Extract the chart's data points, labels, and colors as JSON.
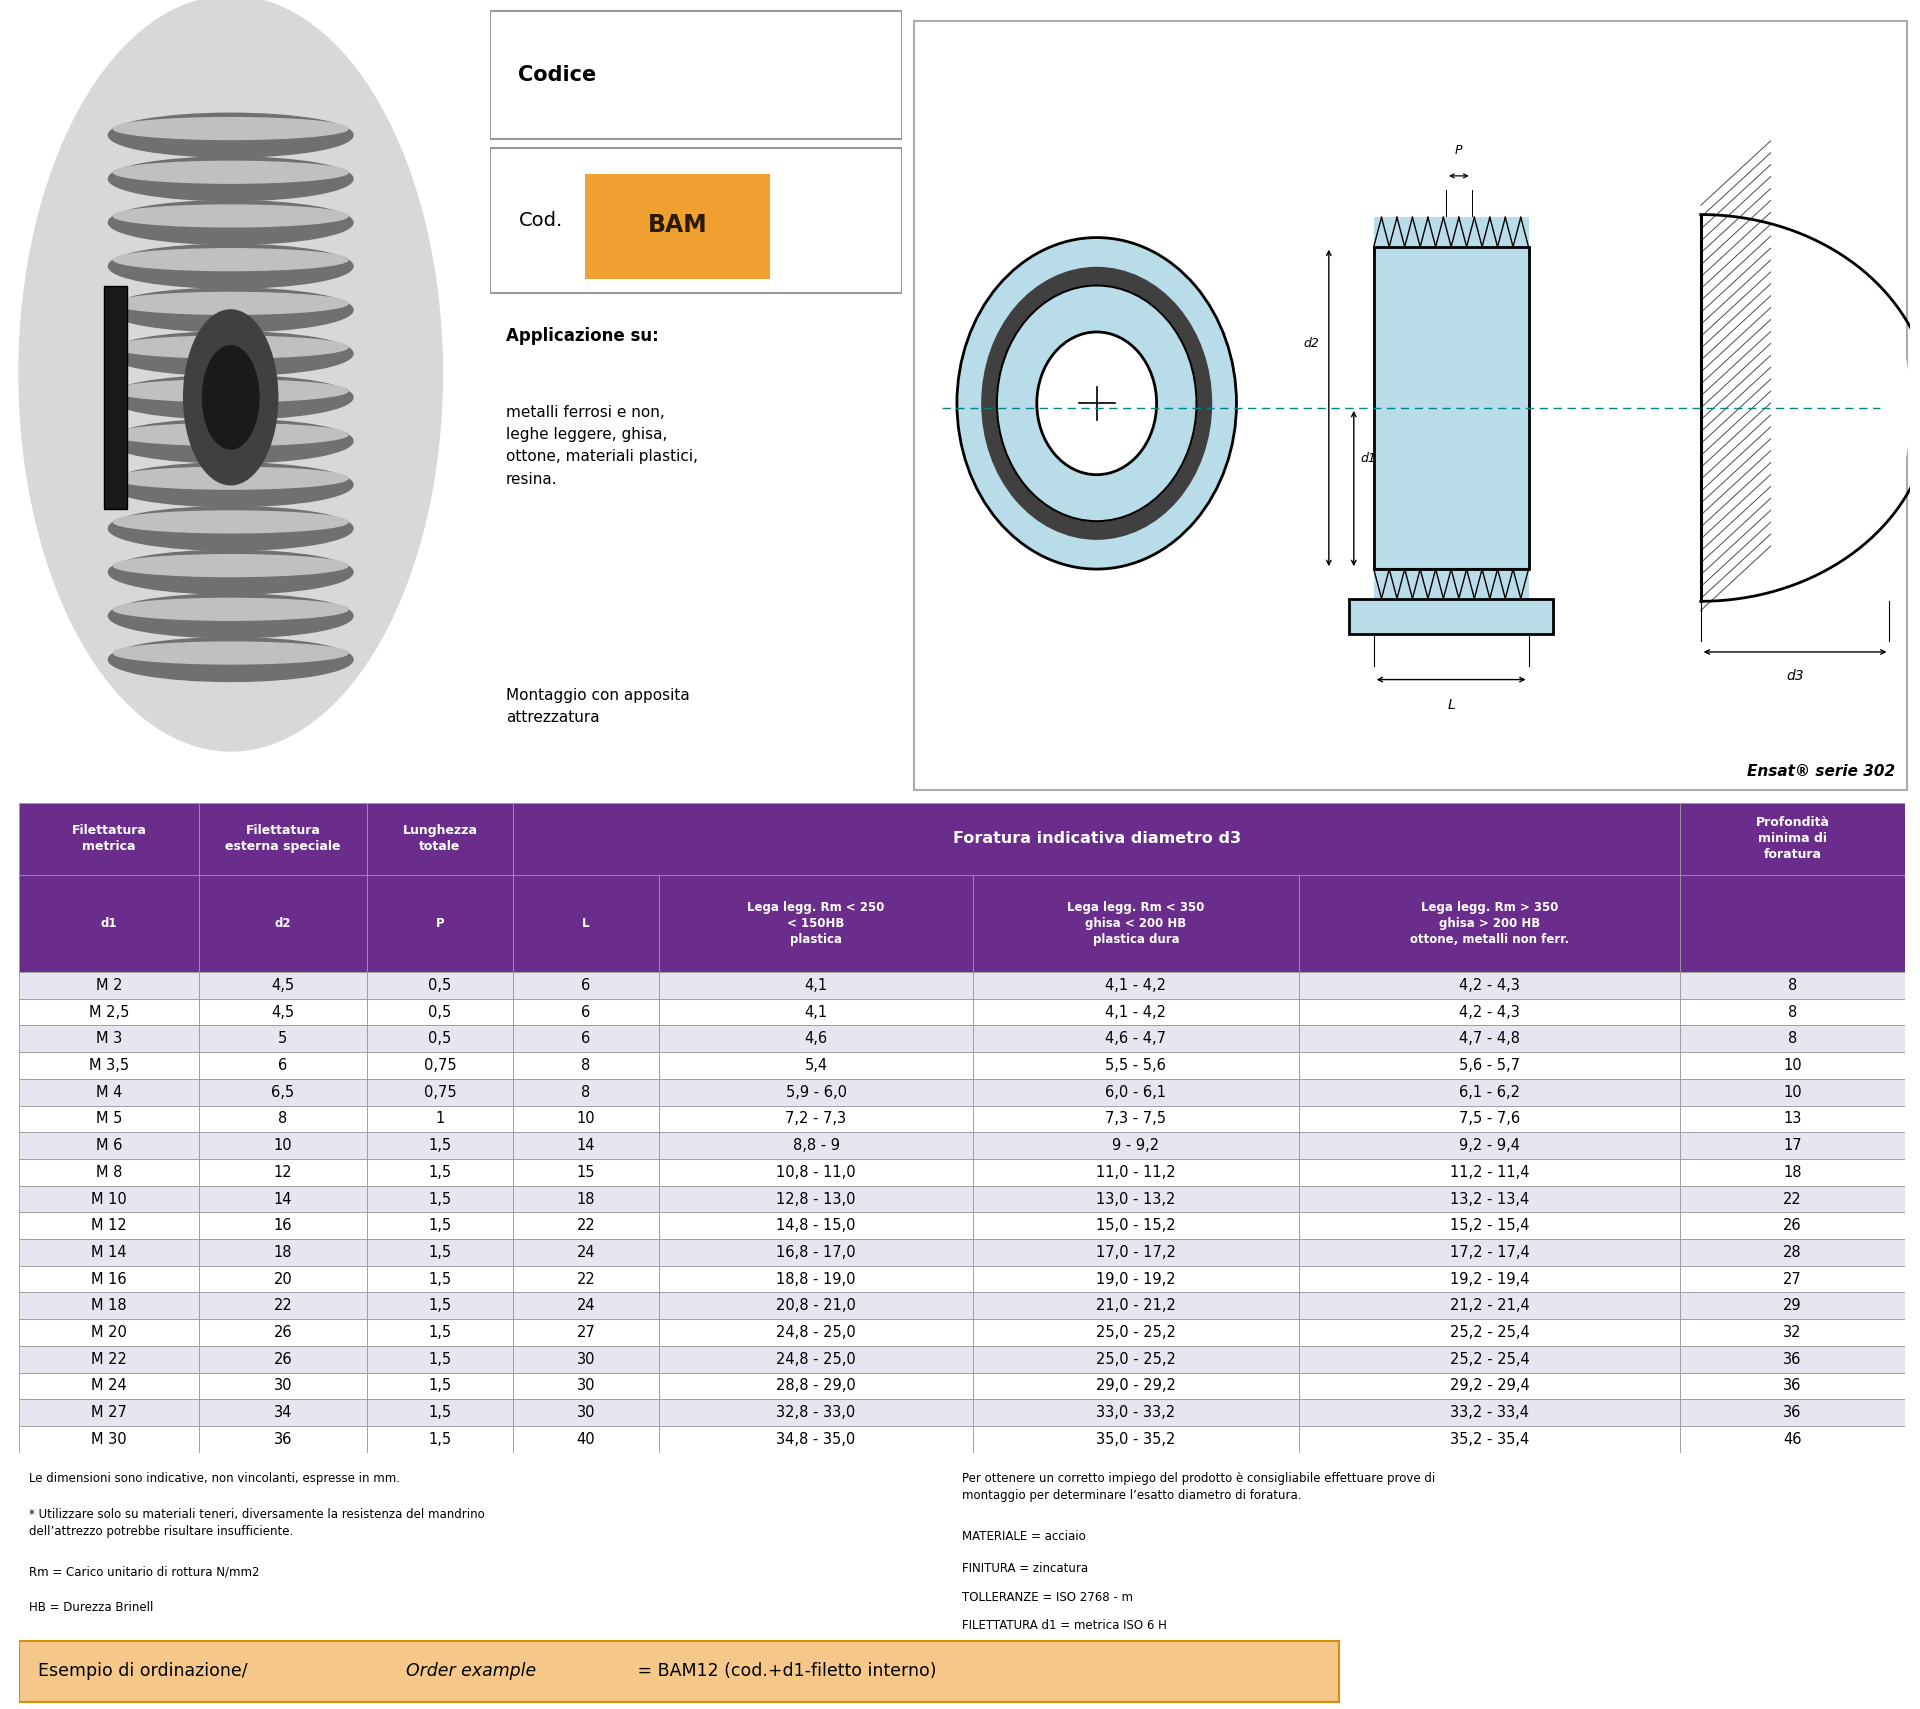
{
  "codice_label": "Codice",
  "cod_label": "Cod.",
  "cod_value": "BAM",
  "applicazione_title": "Applicazione su:",
  "applicazione_text": "metalli ferrosi e non,\nleghe leggere, ghisa,\nottone, materiali plastici,\nresina.",
  "montaggio_text": "Montaggio con apposita\nattrezzatura",
  "ensat_label": "Ensat® serie 302",
  "header_bg": "#6b2d8b",
  "header_text_color": "#ffffff",
  "row_odd_bg": "#e8e4f0",
  "row_even_bg": "#ffffff",
  "bam_bg": "#f0a030",
  "data_rows": [
    [
      "M 2",
      "4,5",
      "0,5",
      "6",
      "4,1",
      "4,1 - 4,2",
      "4,2 - 4,3",
      "8"
    ],
    [
      "M 2,5",
      "4,5",
      "0,5",
      "6",
      "4,1",
      "4,1 - 4,2",
      "4,2 - 4,3",
      "8"
    ],
    [
      "M 3",
      "5",
      "0,5",
      "6",
      "4,6",
      "4,6 - 4,7",
      "4,7 - 4,8",
      "8"
    ],
    [
      "M 3,5",
      "6",
      "0,75",
      "8",
      "5,4",
      "5,5 - 5,6",
      "5,6 - 5,7",
      "10"
    ],
    [
      "M 4",
      "6,5",
      "0,75",
      "8",
      "5,9 - 6,0",
      "6,0 - 6,1",
      "6,1 - 6,2",
      "10"
    ],
    [
      "M 5",
      "8",
      "1",
      "10",
      "7,2 - 7,3",
      "7,3 - 7,5",
      "7,5 - 7,6",
      "13"
    ],
    [
      "M 6",
      "10",
      "1,5",
      "14",
      "8,8 - 9",
      "9 - 9,2",
      "9,2 - 9,4",
      "17"
    ],
    [
      "M 8",
      "12",
      "1,5",
      "15",
      "10,8 - 11,0",
      "11,0 - 11,2",
      "11,2 - 11,4",
      "18"
    ],
    [
      "M 10",
      "14",
      "1,5",
      "18",
      "12,8 - 13,0",
      "13,0 - 13,2",
      "13,2 - 13,4",
      "22"
    ],
    [
      "M 12",
      "16",
      "1,5",
      "22",
      "14,8 - 15,0",
      "15,0 - 15,2",
      "15,2 - 15,4",
      "26"
    ],
    [
      "M 14",
      "18",
      "1,5",
      "24",
      "16,8 - 17,0",
      "17,0 - 17,2",
      "17,2 - 17,4",
      "28"
    ],
    [
      "M 16",
      "20",
      "1,5",
      "22",
      "18,8 - 19,0",
      "19,0 - 19,2",
      "19,2 - 19,4",
      "27"
    ],
    [
      "M 18",
      "22",
      "1,5",
      "24",
      "20,8 - 21,0",
      "21,0 - 21,2",
      "21,2 - 21,4",
      "29"
    ],
    [
      "M 20",
      "26",
      "1,5",
      "27",
      "24,8 - 25,0",
      "25,0 - 25,2",
      "25,2 - 25,4",
      "32"
    ],
    [
      "M 22",
      "26",
      "1,5",
      "30",
      "24,8 - 25,0",
      "25,0 - 25,2",
      "25,2 - 25,4",
      "36"
    ],
    [
      "M 24",
      "30",
      "1,5",
      "30",
      "28,8 - 29,0",
      "29,0 - 29,2",
      "29,2 - 29,4",
      "36"
    ],
    [
      "M 27",
      "34",
      "1,5",
      "30",
      "32,8 - 33,0",
      "33,0 - 33,2",
      "33,2 - 33,4",
      "36"
    ],
    [
      "M 30",
      "36",
      "1,5",
      "40",
      "34,8 - 35,0",
      "35,0 - 35,2",
      "35,2 - 35,4",
      "46"
    ]
  ],
  "footnote_left": [
    "Le dimensioni sono indicative, non vincolanti, espresse in mm.",
    "* Utilizzare solo su materiali teneri, diversamente la resistenza del mandrino\ndell’attrezzo potrebbe risultare insufficiente.",
    "Rm = Carico unitario di rottura N/mm2",
    "HB = Durezza Brinell"
  ],
  "footnote_right": [
    "Per ottenere un corretto impiego del prodotto è consigliabile effettuare prove di\nmontaggio per determinare l’esatto diametro di foratura.",
    "MATERIALE = acciaio",
    "FINITURA = zincatura",
    "TOLLERANZE = ISO 2768 - m",
    "FILETTATURA d1 = metrica ISO 6 H"
  ],
  "example_bg": "#f5c88a",
  "example_border": "#d4900a"
}
